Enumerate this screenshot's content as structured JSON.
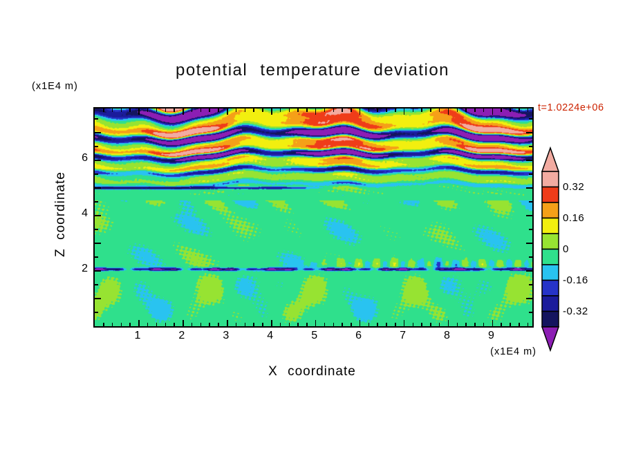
{
  "page": {
    "background": "#ffffff"
  },
  "chart_data": {
    "type": "heatmap",
    "title": "potential temperature deviation",
    "xlabel": "X coordinate",
    "ylabel": "Z coordinate",
    "x_unit_label": "(x1E4 m)",
    "z_unit_label": "(x1E4 m)",
    "time_label": "t=1.0224e+06",
    "time_label_color": "#cc2200",
    "x_range": [
      0,
      9.9
    ],
    "z_range": [
      0,
      7.875
    ],
    "x_ticks": {
      "values": [
        1,
        2,
        3,
        4,
        5,
        6,
        7,
        8,
        9
      ],
      "labels": [
        "1",
        "2",
        "3",
        "4",
        "5",
        "6",
        "7",
        "8",
        "9"
      ],
      "minor_step": 0.2
    },
    "z_ticks": {
      "values": [
        2,
        4,
        6
      ],
      "labels": [
        "2",
        "4",
        "6"
      ],
      "major_step": 1,
      "minor_step": 0.5
    },
    "levels": [
      -0.4,
      -0.32,
      -0.24,
      -0.16,
      -0.08,
      0,
      0.08,
      0.16,
      0.24,
      0.32,
      0.4
    ],
    "palette": {
      "under": "#8c1eb4",
      "bands": [
        "#14145f",
        "#1b1b9b",
        "#2633c8",
        "#29c3f0",
        "#2fe08c",
        "#97e332",
        "#f2ef0f",
        "#f5a018",
        "#ef3c19",
        "#f2aba1"
      ],
      "over": "#f2aba1"
    },
    "colorbar_labels": [
      "0.32",
      "0.16",
      "0",
      "-0.16",
      "-0.32"
    ],
    "field_model": {
      "description": "Potential temperature deviation: breaking gravity-wave bands (pink/purple extremes) above z=4.6, near-uniform slightly-negative layer between z=2.1 and 4.6, weak convective cells (green / yellow-green blobs) below z=2.1, thin dark stable-layer line near z=2.06 and a short one near z=5 on the left.",
      "wave": {
        "z_start": 4.55,
        "amp_max": 0.65,
        "ramp": 1.8,
        "theta_a": 4.8,
        "theta_b": 0.26
      },
      "middle": {
        "base": -0.035,
        "amp": 0.042
      },
      "bottom": {
        "z_top": 2.1,
        "base": -0.035,
        "amp": 0.052
      },
      "line": {
        "z": 2.06,
        "width": 0.05,
        "strength": 0.3
      },
      "line2": {
        "z": 5.0,
        "width": 0.045,
        "strength": 0.3,
        "x_fade_end": 4.8
      },
      "ripples": {
        "z": 2.25,
        "width": 0.16,
        "amp": 0.1,
        "x_start": 4.5
      }
    }
  }
}
